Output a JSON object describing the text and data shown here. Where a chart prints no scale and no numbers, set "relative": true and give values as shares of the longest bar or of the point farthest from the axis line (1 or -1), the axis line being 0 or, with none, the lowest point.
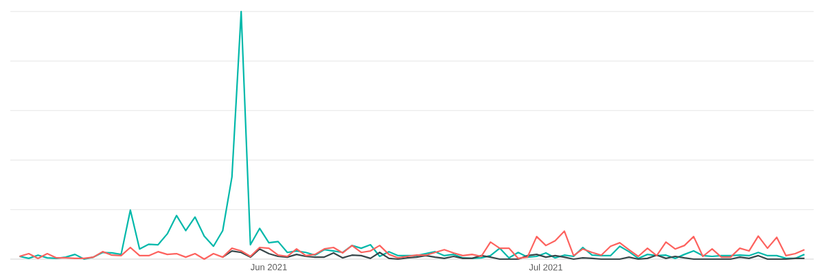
{
  "chart_data": {
    "type": "line",
    "relative": true,
    "grid": "y",
    "tick_labels": "x",
    "x": [
      "2021-05-05",
      "2021-05-06",
      "2021-05-07",
      "2021-05-08",
      "2021-05-09",
      "2021-05-10",
      "2021-05-11",
      "2021-05-12",
      "2021-05-13",
      "2021-05-14",
      "2021-05-15",
      "2021-05-16",
      "2021-05-17",
      "2021-05-18",
      "2021-05-19",
      "2021-05-20",
      "2021-05-21",
      "2021-05-22",
      "2021-05-23",
      "2021-05-24",
      "2021-05-25",
      "2021-05-26",
      "2021-05-27",
      "2021-05-28",
      "2021-05-29",
      "2021-05-30",
      "2021-05-31",
      "2021-06-01",
      "2021-06-02",
      "2021-06-03",
      "2021-06-04",
      "2021-06-05",
      "2021-06-06",
      "2021-06-07",
      "2021-06-08",
      "2021-06-09",
      "2021-06-10",
      "2021-06-11",
      "2021-06-12",
      "2021-06-13",
      "2021-06-14",
      "2021-06-15",
      "2021-06-16",
      "2021-06-17",
      "2021-06-18",
      "2021-06-19",
      "2021-06-20",
      "2021-06-21",
      "2021-06-22",
      "2021-06-23",
      "2021-06-24",
      "2021-06-25",
      "2021-06-26",
      "2021-06-27",
      "2021-06-28",
      "2021-06-29",
      "2021-06-30",
      "2021-07-01",
      "2021-07-02",
      "2021-07-03",
      "2021-07-04",
      "2021-07-05",
      "2021-07-06",
      "2021-07-07",
      "2021-07-08",
      "2021-07-09",
      "2021-07-10",
      "2021-07-11",
      "2021-07-12",
      "2021-07-13",
      "2021-07-14",
      "2021-07-15",
      "2021-07-16",
      "2021-07-17",
      "2021-07-18",
      "2021-07-19",
      "2021-07-20",
      "2021-07-21",
      "2021-07-22",
      "2021-07-23",
      "2021-07-24",
      "2021-07-25",
      "2021-07-26",
      "2021-07-27",
      "2021-07-28",
      "2021-07-29"
    ],
    "xlim": [
      "2021-05-04",
      "2021-07-30"
    ],
    "xticks": [
      {
        "value": "2021-06-01",
        "label": "Jun 2021"
      },
      {
        "value": "2021-07-01",
        "label": "Jul 2021"
      }
    ],
    "series": [
      {
        "color": "#01b8aa",
        "values": [
          0.011,
          0.003,
          0.016,
          0.005,
          0.003,
          0.008,
          0.019,
          0,
          0.008,
          0.027,
          0.025,
          0.019,
          0.198,
          0.041,
          0.06,
          0.058,
          0.102,
          0.176,
          0.115,
          0.17,
          0.093,
          0.052,
          0.115,
          0.332,
          1,
          0.058,
          0.124,
          0.066,
          0.071,
          0.027,
          0.033,
          0.027,
          0.016,
          0.038,
          0.033,
          0.027,
          0.055,
          0.044,
          0.058,
          0.011,
          0.03,
          0.014,
          0.014,
          0.014,
          0.022,
          0.03,
          0.014,
          0.019,
          0.005,
          0.003,
          0.005,
          0.014,
          0.044,
          0.005,
          0.027,
          0.008,
          0.011,
          0.025,
          0.005,
          0.016,
          0.011,
          0.047,
          0.016,
          0.014,
          0.014,
          0.052,
          0.03,
          0.003,
          0.019,
          0.014,
          0.016,
          0.003,
          0.019,
          0.033,
          0.014,
          0.011,
          0.014,
          0.014,
          0.016,
          0.014,
          0.027,
          0.014,
          0.014,
          0.003,
          0.003,
          0.019
        ]
      },
      {
        "color": "#374649",
        "values": [
          null,
          null,
          null,
          null,
          null,
          null,
          null,
          null,
          null,
          null,
          null,
          null,
          null,
          null,
          null,
          null,
          null,
          null,
          null,
          null,
          null,
          null,
          0.008,
          0.033,
          0.027,
          0.008,
          0.041,
          0.022,
          0.011,
          0.008,
          0.019,
          0.011,
          0.008,
          0.008,
          0.025,
          0.005,
          0.016,
          0.014,
          0.003,
          0.027,
          0.003,
          0,
          0.005,
          0.008,
          0.014,
          0.008,
          0.003,
          0.011,
          0.003,
          0.003,
          0.014,
          0.008,
          0,
          0,
          0,
          0.014,
          0.019,
          0.008,
          0.014,
          0.008,
          0,
          0.005,
          0.003,
          0,
          0,
          0,
          0.008,
          0,
          0.003,
          0.016,
          0.003,
          0.011,
          0.005,
          0,
          0,
          0,
          0,
          0,
          0.008,
          0.003,
          0.014,
          0,
          0,
          0,
          0.003,
          0.003
        ]
      },
      {
        "color": "#fd625e",
        "values": [
          0.011,
          0.022,
          0.003,
          0.022,
          0.005,
          0.005,
          0.003,
          0.003,
          0.008,
          0.03,
          0.016,
          0.014,
          0.047,
          0.014,
          0.014,
          0.03,
          0.019,
          0.022,
          0.008,
          0.022,
          0,
          0.022,
          0.008,
          0.044,
          0.033,
          0.011,
          0.047,
          0.044,
          0.016,
          0.011,
          0.041,
          0.014,
          0.019,
          0.041,
          0.047,
          0.025,
          0.055,
          0.027,
          0.033,
          0.055,
          0.019,
          0.005,
          0.011,
          0.016,
          0.016,
          0.027,
          0.038,
          0.025,
          0.014,
          0.019,
          0.011,
          0.069,
          0.044,
          0.044,
          0.003,
          0.008,
          0.091,
          0.055,
          0.074,
          0.113,
          0.014,
          0.041,
          0.027,
          0.016,
          0.052,
          0.066,
          0.038,
          0.011,
          0.044,
          0.014,
          0.069,
          0.041,
          0.055,
          0.091,
          0.011,
          0.041,
          0.008,
          0.008,
          0.044,
          0.033,
          0.093,
          0.044,
          0.088,
          0.014,
          0.022,
          0.038
        ]
      }
    ]
  }
}
